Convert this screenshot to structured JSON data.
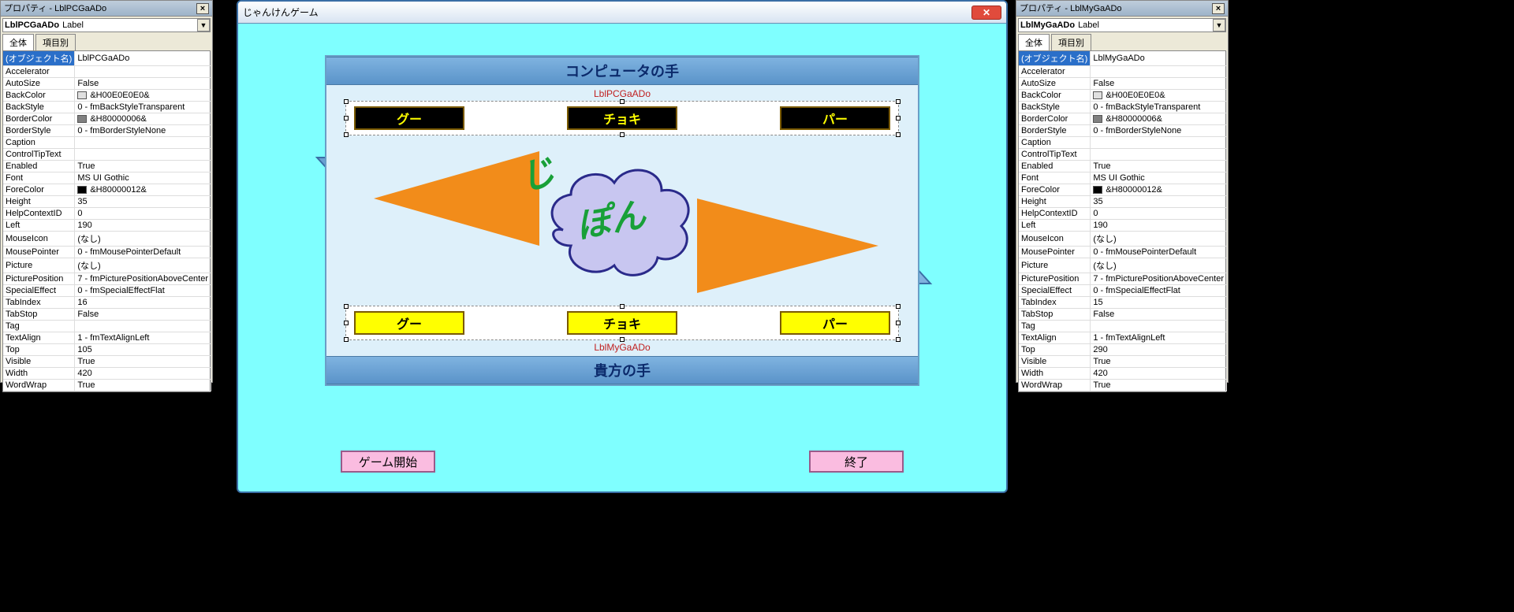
{
  "propLeft": {
    "title": "プロパティ - LblPCGaADo",
    "object": {
      "name": "LblPCGaADo",
      "type": "Label"
    },
    "tabs": [
      "全体",
      "項目別"
    ],
    "rows": [
      {
        "key": "(オブジェクト名)",
        "val": "LblPCGaADo",
        "sel": true
      },
      {
        "key": "Accelerator",
        "val": ""
      },
      {
        "key": "AutoSize",
        "val": "False"
      },
      {
        "key": "BackColor",
        "val": "&H00E0E0E0&",
        "swatch": "#e0e0e0"
      },
      {
        "key": "BackStyle",
        "val": "0 - fmBackStyleTransparent"
      },
      {
        "key": "BorderColor",
        "val": "&H80000006&",
        "swatch": "#808080"
      },
      {
        "key": "BorderStyle",
        "val": "0 - fmBorderStyleNone"
      },
      {
        "key": "Caption",
        "val": ""
      },
      {
        "key": "ControlTipText",
        "val": ""
      },
      {
        "key": "Enabled",
        "val": "True"
      },
      {
        "key": "Font",
        "val": "MS UI Gothic"
      },
      {
        "key": "ForeColor",
        "val": "&H80000012&",
        "swatch": "#000000"
      },
      {
        "key": "Height",
        "val": "35"
      },
      {
        "key": "HelpContextID",
        "val": "0"
      },
      {
        "key": "Left",
        "val": "190"
      },
      {
        "key": "MouseIcon",
        "val": "(なし)"
      },
      {
        "key": "MousePointer",
        "val": "0 - fmMousePointerDefault"
      },
      {
        "key": "Picture",
        "val": "(なし)"
      },
      {
        "key": "PicturePosition",
        "val": "7 - fmPicturePositionAboveCenter"
      },
      {
        "key": "SpecialEffect",
        "val": "0 - fmSpecialEffectFlat"
      },
      {
        "key": "TabIndex",
        "val": "16"
      },
      {
        "key": "TabStop",
        "val": "False"
      },
      {
        "key": "Tag",
        "val": ""
      },
      {
        "key": "TextAlign",
        "val": "1 - fmTextAlignLeft"
      },
      {
        "key": "Top",
        "val": "105"
      },
      {
        "key": "Visible",
        "val": "True"
      },
      {
        "key": "Width",
        "val": "420"
      },
      {
        "key": "WordWrap",
        "val": "True"
      }
    ]
  },
  "propRight": {
    "title": "プロパティ - LblMyGaADo",
    "object": {
      "name": "LblMyGaADo",
      "type": "Label"
    },
    "tabs": [
      "全体",
      "項目別"
    ],
    "rows": [
      {
        "key": "(オブジェクト名)",
        "val": "LblMyGaADo",
        "sel": true
      },
      {
        "key": "Accelerator",
        "val": ""
      },
      {
        "key": "AutoSize",
        "val": "False"
      },
      {
        "key": "BackColor",
        "val": "&H00E0E0E0&",
        "swatch": "#e0e0e0"
      },
      {
        "key": "BackStyle",
        "val": "0 - fmBackStyleTransparent"
      },
      {
        "key": "BorderColor",
        "val": "&H80000006&",
        "swatch": "#808080"
      },
      {
        "key": "BorderStyle",
        "val": "0 - fmBorderStyleNone"
      },
      {
        "key": "Caption",
        "val": ""
      },
      {
        "key": "ControlTipText",
        "val": ""
      },
      {
        "key": "Enabled",
        "val": "True"
      },
      {
        "key": "Font",
        "val": "MS UI Gothic"
      },
      {
        "key": "ForeColor",
        "val": "&H80000012&",
        "swatch": "#000000"
      },
      {
        "key": "Height",
        "val": "35"
      },
      {
        "key": "HelpContextID",
        "val": "0"
      },
      {
        "key": "Left",
        "val": "190"
      },
      {
        "key": "MouseIcon",
        "val": "(なし)"
      },
      {
        "key": "MousePointer",
        "val": "0 - fmMousePointerDefault"
      },
      {
        "key": "Picture",
        "val": "(なし)"
      },
      {
        "key": "PicturePosition",
        "val": "7 - fmPicturePositionAboveCenter"
      },
      {
        "key": "SpecialEffect",
        "val": "0 - fmSpecialEffectFlat"
      },
      {
        "key": "TabIndex",
        "val": "15"
      },
      {
        "key": "TabStop",
        "val": "False"
      },
      {
        "key": "Tag",
        "val": ""
      },
      {
        "key": "TextAlign",
        "val": "1 - fmTextAlignLeft"
      },
      {
        "key": "Top",
        "val": "290"
      },
      {
        "key": "Visible",
        "val": "True"
      },
      {
        "key": "Width",
        "val": "420"
      },
      {
        "key": "WordWrap",
        "val": "True"
      }
    ]
  },
  "game": {
    "title": "じゃんけんゲーム",
    "pcBand": "コンピュータの手",
    "myBand": "貴方の手",
    "pcLabel": "LblPCGaADo",
    "myLabel": "LblMyGaADo",
    "hands": [
      "グー",
      "チョキ",
      "パー"
    ],
    "ji": "じ",
    "pon": "ぽん",
    "startBtn": "ゲーム開始",
    "endBtn": "終了",
    "colors": {
      "formBg": "#7fffff",
      "stageBg": "#def0fa",
      "bandGradA": "#7fb3e0",
      "bandGradB": "#5a93c9",
      "bandText": "#0b2a6b",
      "pcHandBg": "#000000",
      "pcHandFg": "#ffff00",
      "myHandBg": "#ffff00",
      "myHandFg": "#000000",
      "handBorder": "#7a5a00",
      "wedge": "#f28c1a",
      "cloudFill": "#c8c6f0",
      "cloudStroke": "#2a2a8a",
      "jikenFill": "#18a038",
      "pinkBtn": "#fabce0",
      "arrowA": "#8fc0e8",
      "arrowB": "#5a93c9"
    }
  }
}
